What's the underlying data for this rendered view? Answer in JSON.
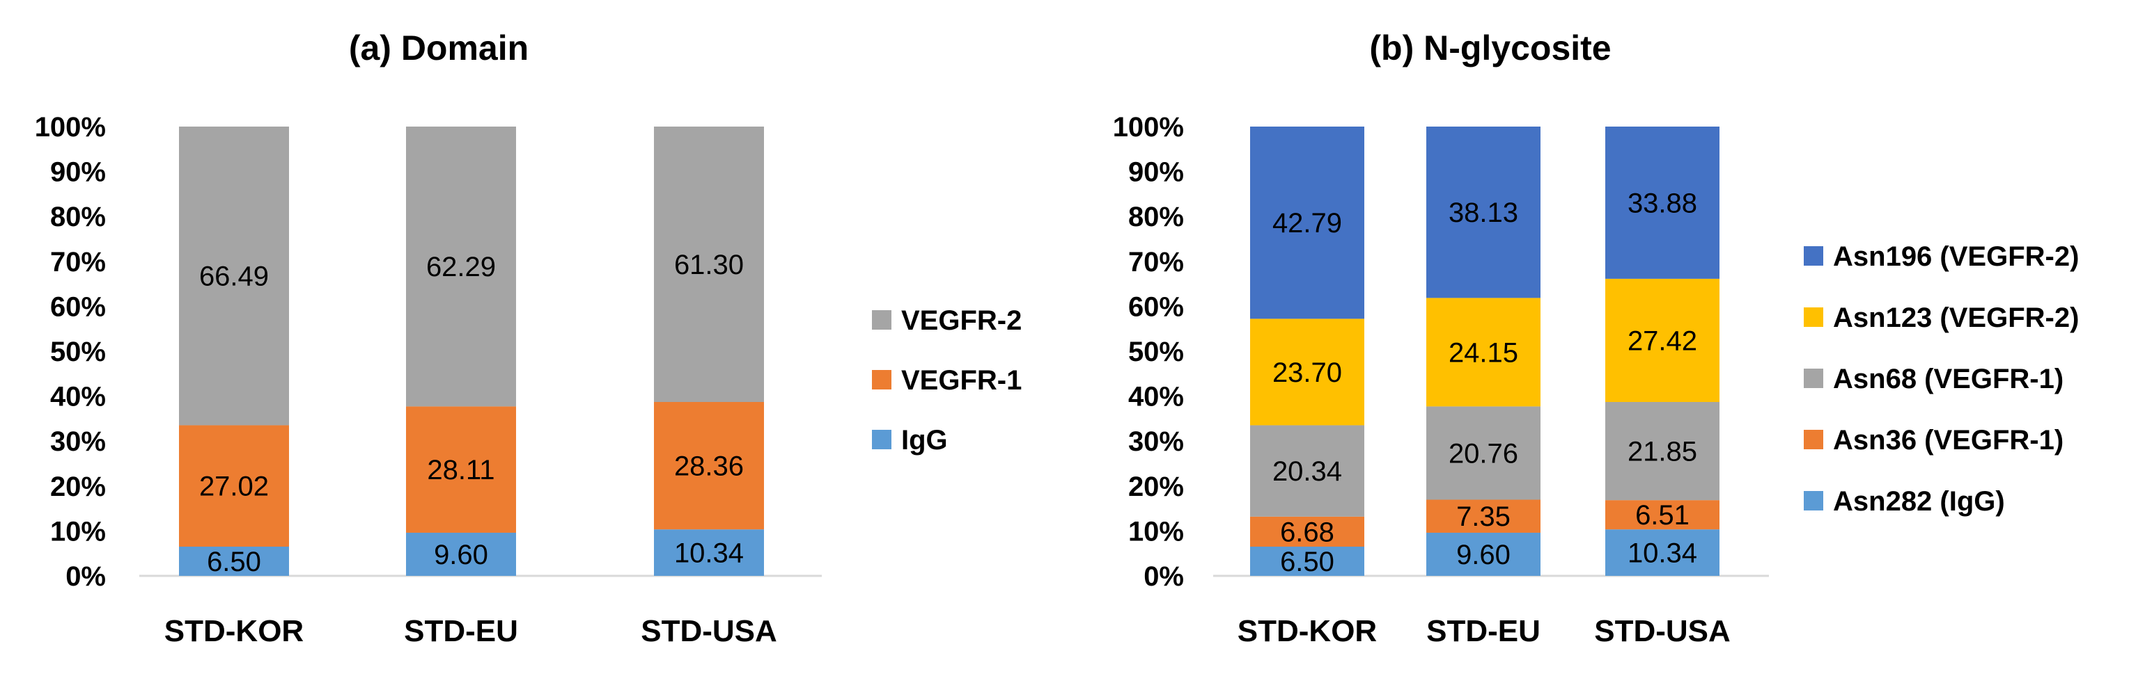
{
  "chart_data": [
    {
      "type": "bar",
      "stacked": true,
      "title": "(a) Domain",
      "categories": [
        "STD-KOR",
        "STD-EU",
        "STD-USA"
      ],
      "series": [
        {
          "name": "IgG",
          "values": [
            6.5,
            9.6,
            10.34
          ],
          "labels": [
            "6.50",
            "9.60",
            "10.34"
          ],
          "color": "#5B9BD5"
        },
        {
          "name": "VEGFR-1",
          "values": [
            27.02,
            28.11,
            28.36
          ],
          "labels": [
            "27.02",
            "28.11",
            "28.36"
          ],
          "color": "#ED7D31"
        },
        {
          "name": "VEGFR-2",
          "values": [
            66.49,
            62.29,
            61.3
          ],
          "labels": [
            "66.49",
            "62.29",
            "61.30"
          ],
          "color": "#A5A5A5"
        }
      ],
      "y_ticks": [
        "0%",
        "10%",
        "20%",
        "30%",
        "40%",
        "50%",
        "60%",
        "70%",
        "80%",
        "90%",
        "100%"
      ],
      "ylim": [
        0,
        100
      ],
      "legend_placement": "right"
    },
    {
      "type": "bar",
      "stacked": true,
      "title": "(b) N-glycosite",
      "categories": [
        "STD-KOR",
        "STD-EU",
        "STD-USA"
      ],
      "series": [
        {
          "name": "Asn282 (IgG)",
          "values": [
            6.5,
            9.6,
            10.34
          ],
          "labels": [
            "6.50",
            "9.60",
            "10.34"
          ],
          "color": "#5B9BD5"
        },
        {
          "name": "Asn36 (VEGFR-1)",
          "values": [
            6.68,
            7.35,
            6.51
          ],
          "labels": [
            "6.68",
            "7.35",
            "6.51"
          ],
          "color": "#ED7D31"
        },
        {
          "name": "Asn68 (VEGFR-1)",
          "values": [
            20.34,
            20.76,
            21.85
          ],
          "labels": [
            "20.34",
            "20.76",
            "21.85"
          ],
          "color": "#A5A5A5"
        },
        {
          "name": "Asn123 (VEGFR-2)",
          "values": [
            23.7,
            24.15,
            27.42
          ],
          "labels": [
            "23.70",
            "24.15",
            "27.42"
          ],
          "color": "#FFC000"
        },
        {
          "name": "Asn196 (VEGFR-2)",
          "values": [
            42.79,
            38.13,
            33.88
          ],
          "labels": [
            "42.79",
            "38.13",
            "33.88"
          ],
          "color": "#4472C4"
        }
      ],
      "y_ticks": [
        "0%",
        "10%",
        "20%",
        "30%",
        "40%",
        "50%",
        "60%",
        "70%",
        "80%",
        "90%",
        "100%"
      ],
      "ylim": [
        0,
        100
      ],
      "legend_placement": "right"
    }
  ]
}
